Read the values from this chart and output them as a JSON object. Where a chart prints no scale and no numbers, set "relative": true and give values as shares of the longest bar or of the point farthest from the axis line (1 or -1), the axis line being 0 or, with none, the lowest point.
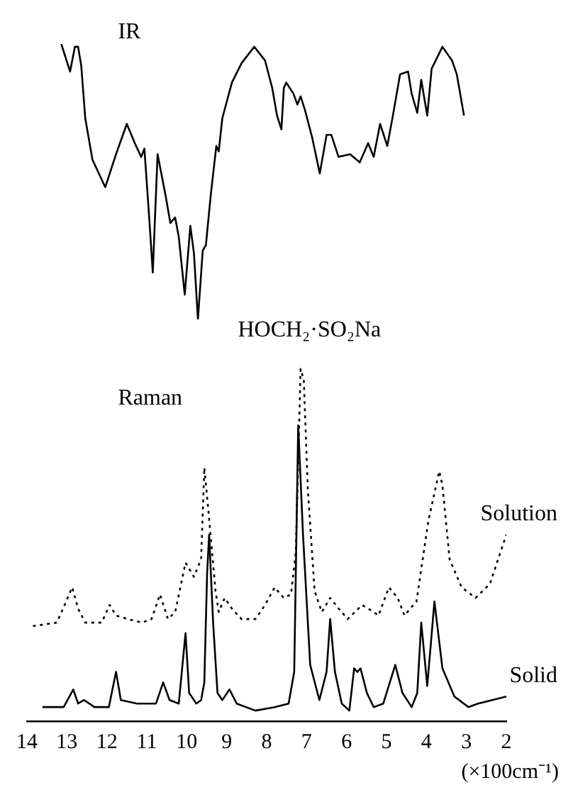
{
  "chart_data": [
    {
      "type": "line",
      "title": "IR",
      "annotations": [
        "HOCH₂·SO₂Na"
      ],
      "relative": true,
      "xlim": [
        14,
        2
      ],
      "tick_labels": false,
      "series": [
        {
          "color": "#000000",
          "line_style": "solid",
          "x": [
            13.14,
            12.92,
            12.8,
            12.72,
            12.64,
            12.54,
            12.36,
            12.04,
            11.77,
            11.5,
            11.3,
            11.14,
            11.06,
            10.94,
            10.85,
            10.73,
            10.53,
            10.41,
            10.29,
            10.2,
            10.05,
            9.91,
            9.82,
            9.72,
            9.6,
            9.52,
            9.4,
            9.26,
            9.2,
            9.11,
            8.87,
            8.63,
            8.31,
            8.04,
            7.86,
            7.74,
            7.63,
            7.57,
            7.51,
            7.33,
            7.23,
            7.15,
            7.04,
            6.86,
            6.67,
            6.5,
            6.38,
            6.2,
            5.91,
            5.67,
            5.46,
            5.32,
            5.16,
            4.98,
            4.84,
            4.66,
            4.46,
            4.37,
            4.23,
            4.13,
            3.98,
            3.87,
            3.6,
            3.36,
            3.24,
            3.06
          ],
          "values": [
            1.0,
            0.9,
            0.99,
            0.99,
            0.92,
            0.73,
            0.58,
            0.48,
            0.6,
            0.71,
            0.64,
            0.59,
            0.62,
            0.37,
            0.17,
            0.6,
            0.45,
            0.35,
            0.37,
            0.3,
            0.09,
            0.34,
            0.24,
            0.0,
            0.25,
            0.27,
            0.45,
            0.63,
            0.61,
            0.73,
            0.86,
            0.93,
            0.99,
            0.94,
            0.84,
            0.74,
            0.69,
            0.84,
            0.86,
            0.82,
            0.78,
            0.81,
            0.76,
            0.66,
            0.53,
            0.67,
            0.67,
            0.59,
            0.6,
            0.57,
            0.64,
            0.59,
            0.71,
            0.63,
            0.74,
            0.89,
            0.9,
            0.82,
            0.75,
            0.87,
            0.74,
            0.91,
            0.99,
            0.94,
            0.89,
            0.74
          ]
        }
      ]
    },
    {
      "type": "line",
      "title": "Raman",
      "xlabel": "(×100cm⁻¹)",
      "relative": true,
      "xlim": [
        14,
        2
      ],
      "xticks": [
        14,
        13,
        12,
        11,
        10,
        9,
        8,
        7,
        6,
        5,
        4,
        3,
        2
      ],
      "tick_labels": "x",
      "series": [
        {
          "name": "Solution",
          "color": "#000000",
          "line_style": "dotted",
          "x": [
            13.85,
            13.25,
            13.02,
            12.87,
            12.72,
            12.54,
            12.13,
            11.93,
            11.77,
            11.48,
            11.12,
            10.88,
            10.67,
            10.47,
            10.29,
            10.03,
            9.82,
            9.64,
            9.56,
            9.46,
            9.28,
            9.2,
            9.05,
            8.87,
            8.63,
            8.28,
            8.04,
            7.8,
            7.57,
            7.39,
            7.27,
            7.15,
            7.07,
            6.97,
            6.8,
            6.62,
            6.41,
            6.2,
            5.97,
            5.61,
            5.32,
            5.2,
            4.94,
            4.72,
            4.55,
            4.25,
            3.95,
            3.68,
            3.6,
            3.42,
            3.12,
            2.77,
            2.41,
            2.0
          ],
          "values": [
            0.27,
            0.28,
            0.34,
            0.38,
            0.32,
            0.28,
            0.28,
            0.33,
            0.3,
            0.29,
            0.28,
            0.29,
            0.36,
            0.29,
            0.31,
            0.45,
            0.41,
            0.46,
            0.72,
            0.6,
            0.37,
            0.31,
            0.35,
            0.32,
            0.29,
            0.29,
            0.33,
            0.38,
            0.35,
            0.36,
            0.48,
            1.0,
            0.97,
            0.66,
            0.37,
            0.31,
            0.35,
            0.32,
            0.29,
            0.33,
            0.31,
            0.3,
            0.38,
            0.35,
            0.3,
            0.34,
            0.57,
            0.71,
            0.67,
            0.46,
            0.38,
            0.35,
            0.39,
            0.53
          ]
        },
        {
          "name": "Solid",
          "color": "#000000",
          "line_style": "solid",
          "x": [
            13.61,
            13.08,
            12.84,
            12.72,
            12.57,
            12.31,
            11.95,
            11.77,
            11.65,
            11.24,
            10.77,
            10.59,
            10.43,
            10.2,
            10.03,
            9.94,
            9.76,
            9.64,
            9.56,
            9.49,
            9.44,
            9.34,
            9.23,
            9.11,
            8.93,
            8.75,
            8.28,
            7.8,
            7.45,
            7.31,
            7.21,
            7.09,
            6.91,
            6.68,
            6.5,
            6.41,
            6.29,
            6.12,
            5.93,
            5.81,
            5.73,
            5.65,
            5.49,
            5.32,
            5.08,
            4.78,
            4.6,
            4.37,
            4.23,
            4.13,
            3.98,
            3.8,
            3.6,
            3.3,
            2.95,
            2.71,
            2.35,
            2.0
          ],
          "values": [
            0.04,
            0.04,
            0.09,
            0.05,
            0.06,
            0.04,
            0.04,
            0.14,
            0.06,
            0.05,
            0.05,
            0.11,
            0.06,
            0.05,
            0.25,
            0.08,
            0.05,
            0.06,
            0.11,
            0.42,
            0.53,
            0.28,
            0.08,
            0.06,
            0.09,
            0.05,
            0.03,
            0.04,
            0.05,
            0.14,
            0.84,
            0.53,
            0.16,
            0.06,
            0.14,
            0.29,
            0.14,
            0.05,
            0.03,
            0.15,
            0.14,
            0.15,
            0.08,
            0.04,
            0.05,
            0.16,
            0.08,
            0.04,
            0.08,
            0.28,
            0.1,
            0.34,
            0.15,
            0.07,
            0.04,
            0.05,
            0.06,
            0.07
          ]
        }
      ]
    }
  ]
}
